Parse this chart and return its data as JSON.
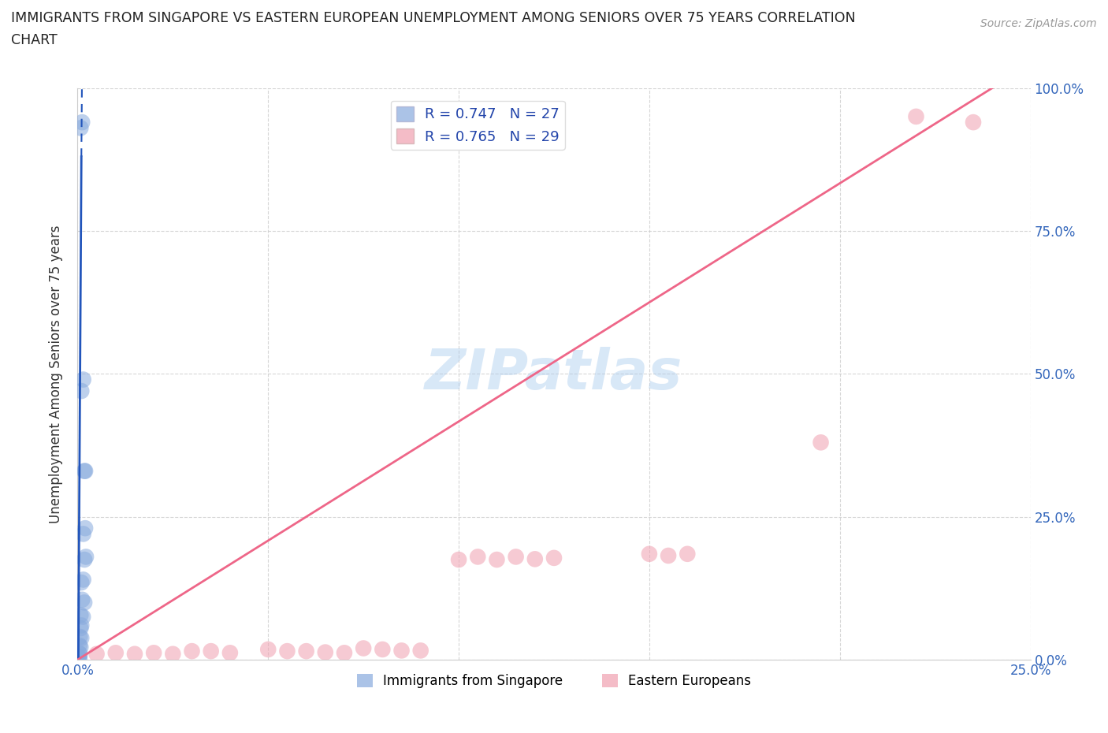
{
  "title_line1": "IMMIGRANTS FROM SINGAPORE VS EASTERN EUROPEAN UNEMPLOYMENT AMONG SENIORS OVER 75 YEARS CORRELATION",
  "title_line2": "CHART",
  "source": "Source: ZipAtlas.com",
  "ylabel": "Unemployment Among Seniors over 75 years",
  "xlim": [
    0,
    0.25
  ],
  "ylim": [
    0,
    1.0
  ],
  "blue_color": "#88aadd",
  "pink_color": "#f0a0b0",
  "blue_scatter": [
    [
      0.0008,
      0.93
    ],
    [
      0.0012,
      0.94
    ],
    [
      0.001,
      0.47
    ],
    [
      0.0015,
      0.49
    ],
    [
      0.0018,
      0.33
    ],
    [
      0.002,
      0.33
    ],
    [
      0.0015,
      0.22
    ],
    [
      0.002,
      0.23
    ],
    [
      0.0018,
      0.175
    ],
    [
      0.0022,
      0.18
    ],
    [
      0.001,
      0.135
    ],
    [
      0.0015,
      0.14
    ],
    [
      0.0012,
      0.105
    ],
    [
      0.0018,
      0.1
    ],
    [
      0.0008,
      0.078
    ],
    [
      0.0014,
      0.075
    ],
    [
      0.001,
      0.06
    ],
    [
      0.0008,
      0.055
    ],
    [
      0.0006,
      0.04
    ],
    [
      0.001,
      0.038
    ],
    [
      0.0005,
      0.025
    ],
    [
      0.0008,
      0.022
    ],
    [
      0.0003,
      0.012
    ],
    [
      0.0006,
      0.01
    ],
    [
      0.0002,
      0.005
    ],
    [
      0.0004,
      0.004
    ],
    [
      0.0005,
      0.002
    ]
  ],
  "pink_scatter": [
    [
      0.005,
      0.01
    ],
    [
      0.01,
      0.012
    ],
    [
      0.015,
      0.01
    ],
    [
      0.02,
      0.012
    ],
    [
      0.025,
      0.01
    ],
    [
      0.03,
      0.015
    ],
    [
      0.035,
      0.015
    ],
    [
      0.04,
      0.012
    ],
    [
      0.05,
      0.018
    ],
    [
      0.055,
      0.015
    ],
    [
      0.06,
      0.015
    ],
    [
      0.065,
      0.013
    ],
    [
      0.07,
      0.012
    ],
    [
      0.075,
      0.02
    ],
    [
      0.08,
      0.018
    ],
    [
      0.085,
      0.016
    ],
    [
      0.09,
      0.016
    ],
    [
      0.1,
      0.175
    ],
    [
      0.105,
      0.18
    ],
    [
      0.11,
      0.175
    ],
    [
      0.115,
      0.18
    ],
    [
      0.12,
      0.176
    ],
    [
      0.125,
      0.178
    ],
    [
      0.15,
      0.185
    ],
    [
      0.155,
      0.182
    ],
    [
      0.16,
      0.185
    ],
    [
      0.195,
      0.38
    ],
    [
      0.22,
      0.95
    ],
    [
      0.235,
      0.94
    ]
  ],
  "blue_R": 0.747,
  "blue_N": 27,
  "pink_R": 0.765,
  "pink_N": 29,
  "blue_line_color": "#2255bb",
  "pink_line_color": "#ee6688",
  "blue_line_solid": [
    [
      0.0002,
      0.0
    ],
    [
      0.001,
      0.88
    ]
  ],
  "blue_line_dashed": [
    [
      0.001,
      0.88
    ],
    [
      0.0012,
      1.05
    ]
  ],
  "pink_line": [
    [
      0.0,
      0.0
    ],
    [
      0.24,
      1.0
    ]
  ],
  "watermark": "ZIPatlas",
  "legend_label_blue": "Immigrants from Singapore",
  "legend_label_pink": "Eastern Europeans"
}
